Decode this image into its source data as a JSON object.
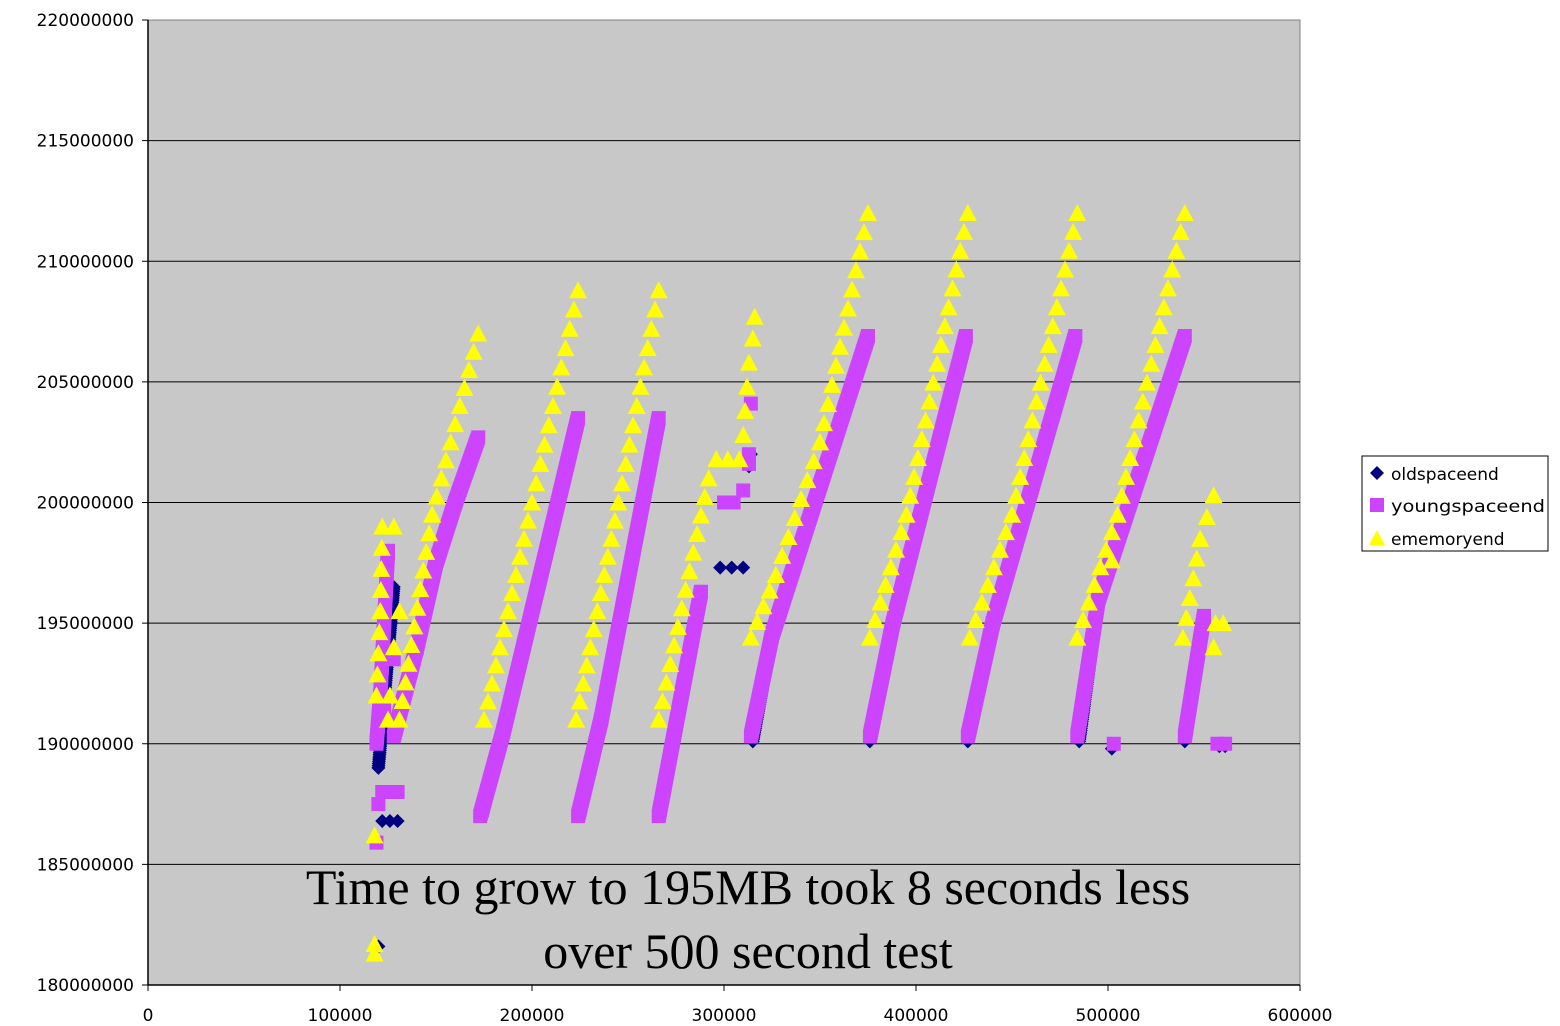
{
  "chart_data": {
    "type": "scatter",
    "title": "",
    "xlabel": "",
    "ylabel": "",
    "xlim": [
      0,
      600000
    ],
    "ylim": [
      180000000,
      220000000
    ],
    "x_ticks": [
      "0",
      "100000",
      "200000",
      "300000",
      "400000",
      "500000",
      "600000"
    ],
    "y_ticks": [
      "180000000",
      "185000000",
      "190000000",
      "195000000",
      "200000000",
      "205000000",
      "210000000",
      "215000000",
      "220000000"
    ],
    "grid": "horizontal",
    "background": "#c8c8c8",
    "legend_position": "right",
    "annotation": [
      "Time to grow to 195MB took 8 seconds less",
      "over 500 second test"
    ],
    "series": [
      {
        "name": "oldspaceend",
        "marker": "diamond",
        "color": "#000080",
        "segments": [
          [
            [
              120000,
              189000000
            ],
            [
              128000,
              196500000
            ]
          ],
          [
            [
              174000,
              187000000
            ],
            [
              185000,
              190500000
            ],
            [
              224000,
              203500000
            ]
          ],
          [
            [
              224000,
              187000000
            ],
            [
              236000,
              191000000
            ],
            [
              266000,
              203500000
            ]
          ],
          [
            [
              266000,
              187000000
            ],
            [
              288000,
              196300000
            ]
          ],
          [
            [
              315000,
              190100000
            ],
            [
              325000,
              194500000
            ],
            [
              375000,
              206700000
            ]
          ],
          [
            [
              376000,
              190100000
            ],
            [
              388000,
              195000000
            ],
            [
              426000,
              206700000
            ]
          ],
          [
            [
              427000,
              190100000
            ],
            [
              440000,
              195000000
            ],
            [
              483000,
              206700000
            ]
          ],
          [
            [
              485000,
              190100000
            ],
            [
              495000,
              196000000
            ],
            [
              540000,
              206700000
            ]
          ],
          [
            [
              540000,
              190100000
            ],
            [
              550000,
              195300000
            ]
          ]
        ],
        "points": [
          [
            122000,
            186800000
          ],
          [
            126000,
            186800000
          ],
          [
            130000,
            186800000
          ],
          [
            298000,
            197300000
          ],
          [
            304000,
            197300000
          ],
          [
            310000,
            197300000
          ],
          [
            313000,
            201500000
          ],
          [
            314000,
            202000000
          ],
          [
            502000,
            189800000
          ],
          [
            558000,
            189900000
          ],
          [
            561000,
            189900000
          ],
          [
            120000,
            181600000
          ]
        ]
      },
      {
        "name": "youngspaceend",
        "marker": "square",
        "color": "#cc44ff",
        "segments": [
          [
            [
              119000,
              190000000
            ],
            [
              121000,
              192000000
            ],
            [
              123000,
              195000000
            ],
            [
              125000,
              198000000
            ]
          ],
          [
            [
              128000,
              190300000
            ],
            [
              140000,
              194000000
            ],
            [
              150000,
              197500000
            ],
            [
              160000,
              200000000
            ],
            [
              172000,
              202700000
            ]
          ],
          [
            [
              173000,
              187000000
            ],
            [
              185000,
              190500000
            ],
            [
              224000,
              203500000
            ]
          ],
          [
            [
              224000,
              187000000
            ],
            [
              236000,
              191000000
            ],
            [
              266000,
              203500000
            ]
          ],
          [
            [
              266000,
              187000000
            ],
            [
              288000,
              196300000
            ]
          ],
          [
            [
              314000,
              190300000
            ],
            [
              325000,
              194500000
            ],
            [
              375000,
              206900000
            ]
          ],
          [
            [
              376000,
              190300000
            ],
            [
              388000,
              195000000
            ],
            [
              426000,
              206900000
            ]
          ],
          [
            [
              427000,
              190300000
            ],
            [
              440000,
              195000000
            ],
            [
              483000,
              206900000
            ]
          ],
          [
            [
              484000,
              190300000
            ],
            [
              495000,
              196000000
            ],
            [
              540000,
              206900000
            ]
          ],
          [
            [
              540000,
              190300000
            ],
            [
              550000,
              195300000
            ]
          ]
        ],
        "points": [
          [
            119000,
            185900000
          ],
          [
            120000,
            187500000
          ],
          [
            122000,
            188000000
          ],
          [
            125000,
            188000000
          ],
          [
            130000,
            188000000
          ],
          [
            123000,
            191500000
          ],
          [
            128000,
            193500000
          ],
          [
            300000,
            200000000
          ],
          [
            305000,
            200000000
          ],
          [
            310000,
            200500000
          ],
          [
            313000,
            201600000
          ],
          [
            313000,
            202000000
          ],
          [
            314000,
            204100000
          ],
          [
            503000,
            190000000
          ],
          [
            557000,
            190000000
          ],
          [
            561000,
            190000000
          ]
        ]
      },
      {
        "name": "ememoryend",
        "marker": "triangle",
        "color": "#ffff00",
        "segments": [
          [
            [
              119000,
              192000000
            ],
            [
              121000,
              195500000
            ],
            [
              122000,
              199000000
            ]
          ],
          [
            [
              131000,
              191000000
            ],
            [
              148000,
              199500000
            ],
            [
              172000,
              207000000
            ]
          ],
          [
            [
              175000,
              191000000
            ],
            [
              200000,
              200000000
            ],
            [
              224000,
              208800000
            ]
          ],
          [
            [
              223000,
              191000000
            ],
            [
              245000,
              200000000
            ],
            [
              266000,
              208800000
            ]
          ],
          [
            [
              266000,
              191000000
            ],
            [
              292000,
              201000000
            ]
          ],
          [
            [
              314000,
              194400000
            ],
            [
              327000,
              197000000
            ],
            [
              350000,
              202500000
            ],
            [
              375000,
              212000000
            ]
          ],
          [
            [
              376000,
              194400000
            ],
            [
              395000,
              199500000
            ],
            [
              427000,
              212000000
            ]
          ],
          [
            [
              428000,
              194400000
            ],
            [
              450000,
              199500000
            ],
            [
              484000,
              212000000
            ]
          ],
          [
            [
              484000,
              194400000
            ],
            [
              505000,
              199500000
            ],
            [
              540000,
              212000000
            ]
          ],
          [
            [
              539000,
              194400000
            ],
            [
              548000,
              198500000
            ],
            [
              555000,
              200300000
            ]
          ]
        ],
        "points": [
          [
            125000,
            191000000
          ],
          [
            126000,
            192000000
          ],
          [
            128000,
            199000000
          ],
          [
            131000,
            195500000
          ],
          [
            128000,
            194000000
          ],
          [
            296000,
            201800000
          ],
          [
            302000,
            201800000
          ],
          [
            308000,
            201800000
          ],
          [
            310000,
            202800000
          ],
          [
            311000,
            203800000
          ],
          [
            312000,
            204800000
          ],
          [
            313000,
            205800000
          ],
          [
            315000,
            206800000
          ],
          [
            316000,
            207700000
          ],
          [
            502000,
            197600000
          ],
          [
            555000,
            194000000
          ],
          [
            556000,
            195000000
          ],
          [
            560000,
            195000000
          ],
          [
            118000,
            186200000
          ],
          [
            118000,
            181300000
          ],
          [
            118000,
            181700000
          ]
        ]
      }
    ]
  }
}
